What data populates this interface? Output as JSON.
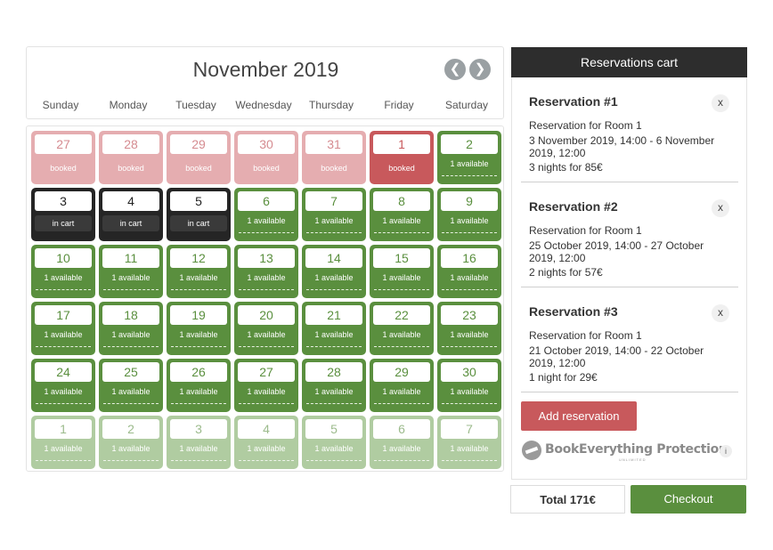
{
  "calendar": {
    "month_title": "November 2019",
    "nav": {
      "prev_icon": "chevron-left-icon",
      "next_icon": "chevron-right-icon",
      "prev_glyph": "❮",
      "next_glyph": "❯"
    },
    "weekdays": [
      "Sunday",
      "Monday",
      "Tuesday",
      "Wednesday",
      "Thursday",
      "Friday",
      "Saturday"
    ],
    "weeks": [
      [
        {
          "day": "27",
          "label": "booked",
          "state": "booked-past"
        },
        {
          "day": "28",
          "label": "booked",
          "state": "booked-past"
        },
        {
          "day": "29",
          "label": "booked",
          "state": "booked-past"
        },
        {
          "day": "30",
          "label": "booked",
          "state": "booked-past"
        },
        {
          "day": "31",
          "label": "booked",
          "state": "booked-past"
        },
        {
          "day": "1",
          "label": "booked",
          "state": "booked"
        },
        {
          "day": "2",
          "label": "1 available",
          "state": "avail"
        }
      ],
      [
        {
          "day": "3",
          "label": "in cart",
          "state": "cart"
        },
        {
          "day": "4",
          "label": "in cart",
          "state": "cart"
        },
        {
          "day": "5",
          "label": "in cart",
          "state": "cart"
        },
        {
          "day": "6",
          "label": "1 available",
          "state": "avail"
        },
        {
          "day": "7",
          "label": "1 available",
          "state": "avail"
        },
        {
          "day": "8",
          "label": "1 available",
          "state": "avail"
        },
        {
          "day": "9",
          "label": "1 available",
          "state": "avail"
        }
      ],
      [
        {
          "day": "10",
          "label": "1 available",
          "state": "avail"
        },
        {
          "day": "11",
          "label": "1 available",
          "state": "avail"
        },
        {
          "day": "12",
          "label": "1 available",
          "state": "avail"
        },
        {
          "day": "13",
          "label": "1 available",
          "state": "avail"
        },
        {
          "day": "14",
          "label": "1 available",
          "state": "avail"
        },
        {
          "day": "15",
          "label": "1 available",
          "state": "avail"
        },
        {
          "day": "16",
          "label": "1 available",
          "state": "avail"
        }
      ],
      [
        {
          "day": "17",
          "label": "1 available",
          "state": "avail"
        },
        {
          "day": "18",
          "label": "1 available",
          "state": "avail"
        },
        {
          "day": "19",
          "label": "1 available",
          "state": "avail"
        },
        {
          "day": "20",
          "label": "1 available",
          "state": "avail"
        },
        {
          "day": "21",
          "label": "1 available",
          "state": "avail"
        },
        {
          "day": "22",
          "label": "1 available",
          "state": "avail"
        },
        {
          "day": "23",
          "label": "1 available",
          "state": "avail"
        }
      ],
      [
        {
          "day": "24",
          "label": "1 available",
          "state": "avail"
        },
        {
          "day": "25",
          "label": "1 available",
          "state": "avail"
        },
        {
          "day": "26",
          "label": "1 available",
          "state": "avail"
        },
        {
          "day": "27",
          "label": "1 available",
          "state": "avail"
        },
        {
          "day": "28",
          "label": "1 available",
          "state": "avail"
        },
        {
          "day": "29",
          "label": "1 available",
          "state": "avail"
        },
        {
          "day": "30",
          "label": "1 available",
          "state": "avail"
        }
      ],
      [
        {
          "day": "1",
          "label": "1 available",
          "state": "next"
        },
        {
          "day": "2",
          "label": "1 available",
          "state": "next"
        },
        {
          "day": "3",
          "label": "1 available",
          "state": "next"
        },
        {
          "day": "4",
          "label": "1 available",
          "state": "next"
        },
        {
          "day": "5",
          "label": "1 available",
          "state": "next"
        },
        {
          "day": "6",
          "label": "1 available",
          "state": "next"
        },
        {
          "day": "7",
          "label": "1 available",
          "state": "next"
        }
      ]
    ]
  },
  "cart": {
    "header": "Reservations cart",
    "reservations": [
      {
        "title": "Reservation #1",
        "remove": "x",
        "room": "Reservation for Room 1",
        "dates": "3 November 2019, 14:00 - 6 November 2019, 12:00",
        "nights": "3 nights for 85€"
      },
      {
        "title": "Reservation #2",
        "remove": "x",
        "room": "Reservation for Room 1",
        "dates": "25 October 2019, 14:00 - 27 October 2019, 12:00",
        "nights": "2 nights for 57€"
      },
      {
        "title": "Reservation #3",
        "remove": "x",
        "room": "Reservation for Room 1",
        "dates": "21 October 2019, 14:00 - 22 October 2019, 12:00",
        "nights": "1 night for 29€"
      }
    ],
    "add_button": "Add reservation",
    "protection": {
      "name": "BookEverything Protection",
      "sub": "UNLIMITED",
      "info": "i"
    },
    "total": "Total 171€",
    "checkout": "Checkout"
  },
  "colors": {
    "available": "#5a8f3e",
    "booked": "#c8595c",
    "booked_past": "#e5adb0",
    "in_cart": "#252525",
    "next_month": "#b0cca1",
    "cart_header": "#2d2d2d"
  }
}
